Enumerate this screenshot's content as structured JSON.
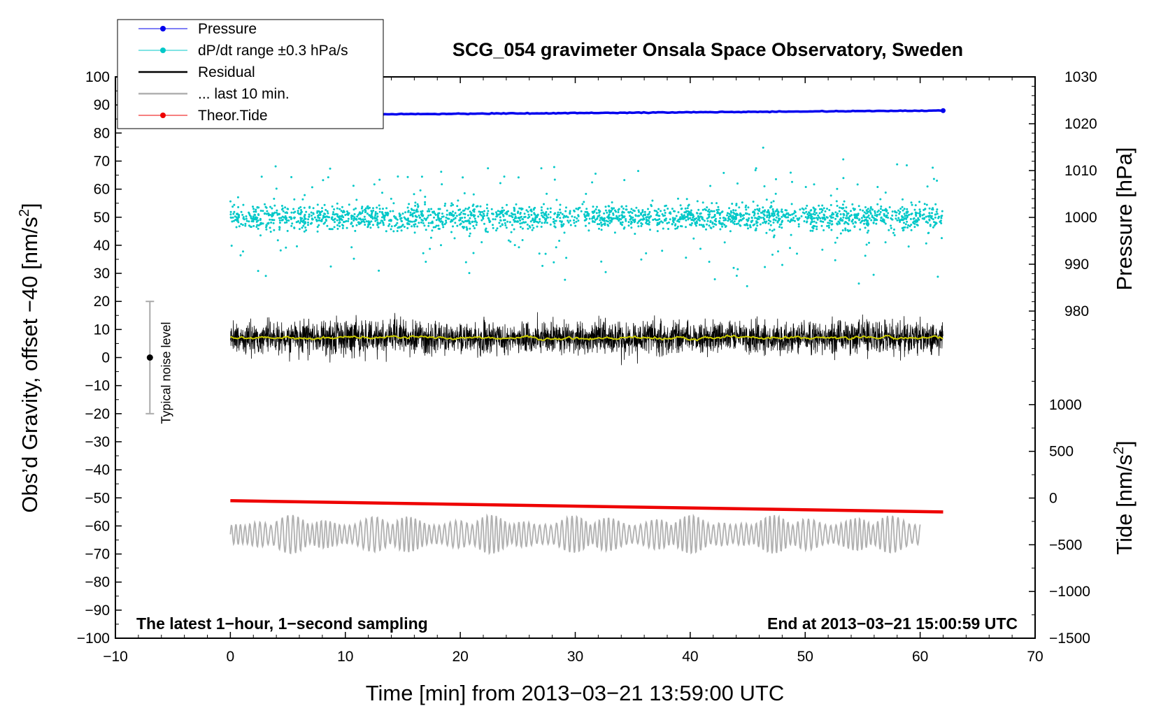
{
  "chart_data": {
    "type": "line",
    "title": "SCG_054 gravimeter Onsala Space Observatory, Sweden",
    "xlabel": "Time [min] from 2013−03−21 13:59:00 UTC",
    "xlim": [
      -10,
      70
    ],
    "x_ticks": [
      "−10",
      "0",
      "10",
      "20",
      "30",
      "40",
      "50",
      "60",
      "70"
    ],
    "y_left": {
      "label_prefix": "Obs’d Gravity, offset −40 [nm/s",
      "label_sup": "2",
      "label_suffix": "]",
      "ylim": [
        -100,
        100
      ],
      "ticks": [
        "100",
        "90",
        "80",
        "70",
        "60",
        "50",
        "40",
        "30",
        "20",
        "10",
        "0",
        "−10",
        "−20",
        "−30",
        "−40",
        "−50",
        "−60",
        "−70",
        "−80",
        "−90",
        "−100"
      ]
    },
    "y_right_pressure": {
      "label": "Pressure [hPa]",
      "ticks": [
        "1030",
        "1020",
        "1010",
        "1000",
        "990",
        "980"
      ],
      "range": [
        970,
        1030
      ]
    },
    "y_right_tide": {
      "label_prefix": "Tide [nm/s",
      "label_sup": "2",
      "label_suffix": "]",
      "ticks": [
        "1000",
        "500",
        "0",
        "−500",
        "−1000",
        "−1500"
      ],
      "range": [
        -1500,
        1500
      ]
    },
    "series": [
      {
        "name": "Pressure",
        "color": "#0000ee",
        "marker": "dot",
        "x_range": [
          0,
          62
        ],
        "axis": "pressure",
        "start": 1021.8,
        "end": 1022.8
      },
      {
        "name": "dP/dt range ±0.3 hPa/s",
        "color": "#00c8c8",
        "marker": "dot",
        "x_range": [
          0,
          62
        ],
        "axis": "left",
        "center": 50,
        "spread": 3,
        "outlier_max": 27
      },
      {
        "name": "Residual",
        "color": "#000000",
        "marker": "none",
        "x_range": [
          0,
          62
        ],
        "axis": "left",
        "center": 7,
        "amplitude": 5
      },
      {
        "name": "... last 10 min.",
        "color": "#b0b0b0",
        "marker": "none",
        "x_range": [
          0,
          60
        ],
        "axis": "left",
        "center": -63,
        "amplitude": 7
      },
      {
        "name": "Theor.Tide",
        "color": "#ee0000",
        "marker": "dot",
        "x_range": [
          0,
          62
        ],
        "axis": "left",
        "start": -51,
        "end": -55
      }
    ],
    "smooth_line": {
      "color": "#cccc00",
      "center": 7
    },
    "noise_bar": {
      "label": "Typical noise level",
      "x": -7,
      "center": 0,
      "half_range": 20
    },
    "legend_position": "top-left",
    "notes": {
      "left": "The latest 1−hour, 1−second sampling",
      "right": "End at 2013−03−21 15:00:59 UTC"
    }
  }
}
